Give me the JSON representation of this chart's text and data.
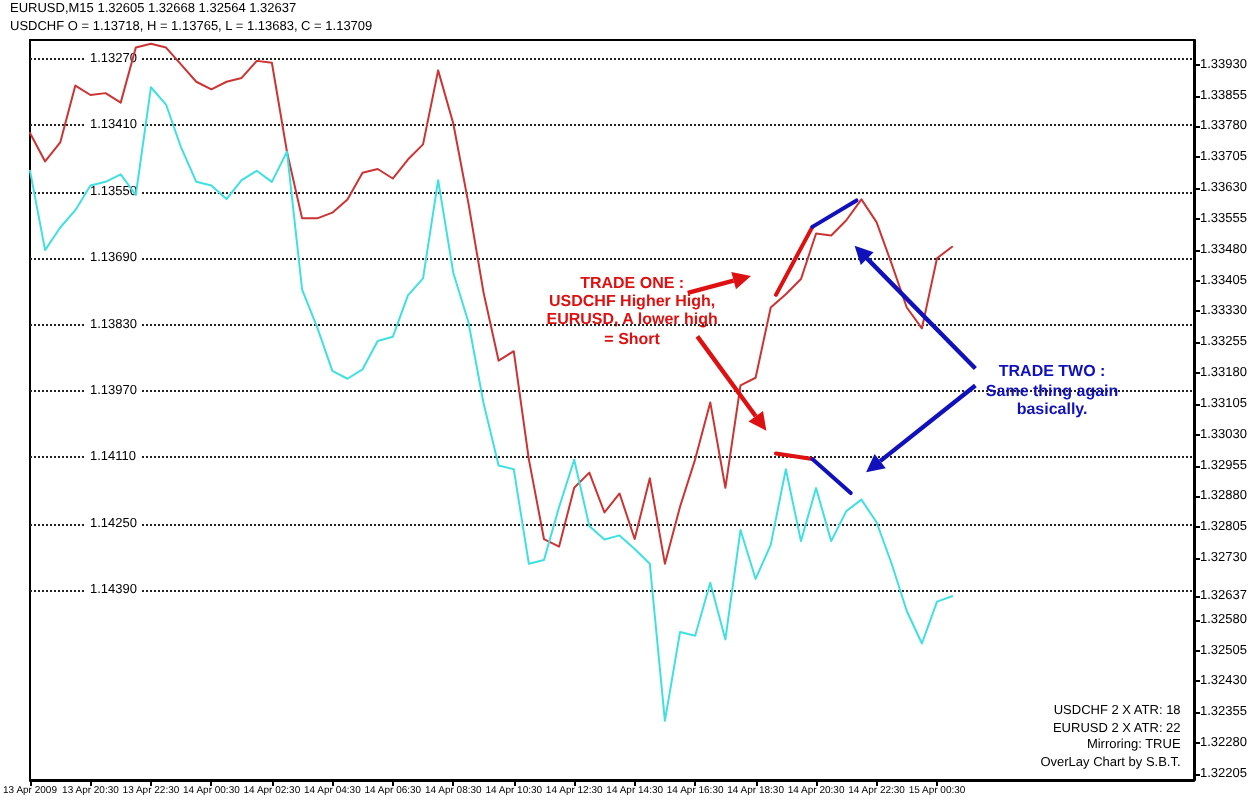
{
  "chart_data": {
    "type": "line",
    "categories": [
      "13 Apr 2009",
      null,
      null,
      null,
      "13 Apr 20:30",
      null,
      null,
      null,
      "13 Apr 22:30",
      null,
      null,
      null,
      "14 Apr 00:30",
      null,
      null,
      null,
      "14 Apr 02:30",
      null,
      null,
      null,
      "14 Apr 04:30",
      null,
      null,
      null,
      "14 Apr 06:30",
      null,
      null,
      null,
      "14 Apr 08:30",
      null,
      null,
      null,
      "14 Apr 10:30",
      null,
      null,
      null,
      "14 Apr 12:30",
      null,
      null,
      null,
      "14 Apr 14:30",
      null,
      null,
      null,
      "14 Apr 16:30",
      null,
      null,
      null,
      "14 Apr 18:30",
      null,
      null,
      null,
      "14 Apr 20:30",
      null,
      null,
      null,
      "14 Apr 22:30",
      null,
      null,
      null,
      "15 Apr 00:30",
      null,
      null,
      null,
      null,
      null,
      null,
      null,
      null,
      null,
      null,
      null,
      null,
      null,
      null,
      null,
      null,
      null
    ],
    "series": [
      {
        "color": "#cc3333",
        "values": [
          1.13426,
          1.13486,
          1.13446,
          1.13326,
          1.13346,
          1.13342,
          1.13362,
          1.13246,
          1.13238,
          1.13246,
          1.13282,
          1.13318,
          1.13334,
          1.13318,
          1.1331,
          1.13274,
          1.13278,
          1.13466,
          1.13606,
          1.13606,
          1.13594,
          1.13566,
          1.1351,
          1.13502,
          1.13522,
          1.13482,
          1.1345,
          1.13294,
          1.13406,
          1.13574,
          1.13762,
          1.13906,
          1.13886,
          1.14114,
          1.14282,
          1.14298,
          1.14174,
          1.14142,
          1.14226,
          1.14186,
          1.14282,
          1.14154,
          1.14334,
          1.14214,
          1.14114,
          1.13994,
          1.14174,
          1.13958,
          1.13942,
          1.13794,
          1.13766,
          1.13734,
          1.13638,
          1.13642,
          1.1361,
          1.13566,
          1.13614,
          1.13702,
          1.13794,
          1.13838,
          1.1369,
          1.13666,
          null,
          null,
          null,
          null,
          null,
          null,
          null,
          null,
          null,
          null,
          null,
          null,
          null,
          null,
          null,
          null
        ]
      },
      {
        "color": "#40e0e0",
        "axis": "y2",
        "values": [
          1.33672,
          1.33479,
          1.33534,
          1.33576,
          1.33636,
          1.33645,
          1.33663,
          1.33613,
          1.33875,
          1.33833,
          1.33728,
          1.33645,
          1.33636,
          1.33603,
          1.33649,
          1.33672,
          1.33645,
          1.33718,
          1.33383,
          1.33291,
          1.33185,
          1.33166,
          1.33189,
          1.33258,
          1.33268,
          1.33369,
          1.3341,
          1.33649,
          1.33424,
          1.33304,
          1.33107,
          1.32955,
          1.32946,
          1.32716,
          1.32725,
          1.32854,
          1.32969,
          1.32808,
          1.32775,
          1.32785,
          1.32752,
          1.32716,
          1.32334,
          1.3255,
          1.32541,
          1.3267,
          1.32532,
          1.32798,
          1.32679,
          1.32762,
          1.32946,
          1.32771,
          1.329,
          1.32771,
          1.32844,
          1.32872,
          1.32817,
          1.32716,
          1.32601,
          1.32522,
          1.32624,
          1.32637,
          null,
          null,
          null,
          null,
          null,
          null,
          null,
          null,
          null,
          null,
          null,
          null,
          null,
          null,
          null,
          null
        ]
      }
    ],
    "ylim": [
      1.1479,
      1.1323
    ],
    "yticks": [
      {
        "value": 1.1327,
        "label": "1.13270"
      },
      {
        "value": 1.1341,
        "label": "1.13410"
      },
      {
        "value": 1.1355,
        "label": "1.13550"
      },
      {
        "value": 1.1369,
        "label": "1.13690"
      },
      {
        "value": 1.1383,
        "label": "1.13830"
      },
      {
        "value": 1.1397,
        "label": "1.13970"
      },
      {
        "value": 1.1411,
        "label": "1.14110"
      },
      {
        "value": 1.1425,
        "label": "1.14250"
      },
      {
        "value": 1.1439,
        "label": "1.14390"
      }
    ],
    "y2lim": [
      1.3219,
      1.3399
    ],
    "y2ticks": [
      {
        "value": 1.3393,
        "label": "1.33930"
      },
      {
        "value": 1.33855,
        "label": "1.33855"
      },
      {
        "value": 1.3378,
        "label": "1.33780"
      },
      {
        "value": 1.33705,
        "label": "1.33705"
      },
      {
        "value": 1.3363,
        "label": "1.33630"
      },
      {
        "value": 1.33555,
        "label": "1.33555"
      },
      {
        "value": 1.3348,
        "label": "1.33480"
      },
      {
        "value": 1.33405,
        "label": "1.33405"
      },
      {
        "value": 1.3333,
        "label": "1.33330"
      },
      {
        "value": 1.33255,
        "label": "1.33255"
      },
      {
        "value": 1.3318,
        "label": "1.33180"
      },
      {
        "value": 1.33105,
        "label": "1.33105"
      },
      {
        "value": 1.3303,
        "label": "1.33030"
      },
      {
        "value": 1.32955,
        "label": "1.32955"
      },
      {
        "value": 1.3288,
        "label": "1.32880"
      },
      {
        "value": 1.32805,
        "label": "1.32805"
      },
      {
        "value": 1.3273,
        "label": "1.32730"
      },
      {
        "value": 1.32637,
        "label": "1.32637"
      },
      {
        "value": 1.3258,
        "label": "1.32580"
      },
      {
        "value": 1.32505,
        "label": "1.32505"
      },
      {
        "value": 1.3243,
        "label": "1.32430"
      },
      {
        "value": 1.32355,
        "label": "1.32355"
      },
      {
        "value": 1.3228,
        "label": "1.32280"
      },
      {
        "value": 1.32205,
        "label": "1.32205"
      }
    ],
    "grid": "y",
    "marker": "none",
    "line_style": "solid",
    "annotations": [
      "EURUSD,M15  1.32605 1.32668 1.32564 1.32637",
      "USDCHF O = 1.13718, H = 1.13765, L = 1.13683, C = 1.13709",
      "TRADE ONE :\nUSDCHF Higher High,\nEURUSD, A lower high\n= Short",
      "TRADE TWO :\nSame thing again\nbasically.",
      "USDCHF 2 X ATR: 18",
      "EURUSD 2 X ATR: 22",
      "Mirroring: TRUE",
      "OverLay Chart by S.B.T."
    ]
  }
}
